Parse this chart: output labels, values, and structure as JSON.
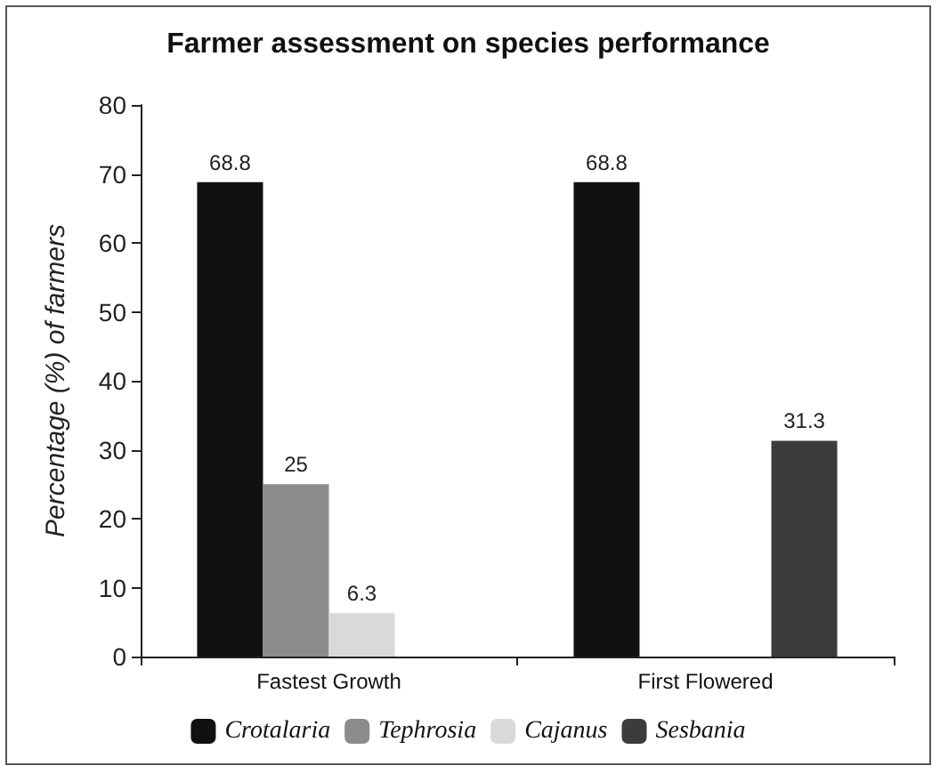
{
  "chart_data": {
    "type": "bar",
    "title": "Farmer assessment on species performance",
    "ylabel": "Percentage (%) of farmers",
    "categories": [
      "Fastest Growth",
      "First Flowered"
    ],
    "series": [
      {
        "name": "Crotalaria",
        "color": "#111111",
        "values": [
          68.8,
          68.8
        ]
      },
      {
        "name": "Tephrosia",
        "color": "#8c8c8c",
        "values": [
          25,
          null
        ]
      },
      {
        "name": "Cajanus",
        "color": "#d9d9d9",
        "values": [
          6.3,
          null
        ]
      },
      {
        "name": "Sesbania",
        "color": "#3c3c3c",
        "values": [
          null,
          31.3
        ]
      }
    ],
    "ylim": [
      0,
      80
    ],
    "yticks": [
      0,
      10,
      20,
      30,
      40,
      50,
      60,
      70,
      80
    ],
    "grid": false,
    "legend": "bottom",
    "data_labels": true
  }
}
